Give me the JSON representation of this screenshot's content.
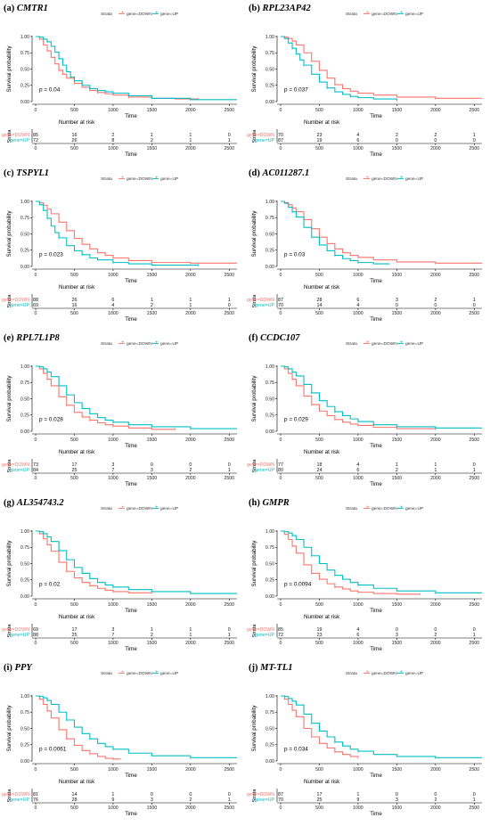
{
  "legend": {
    "title": "Strata",
    "entries": [
      "gene=DOWN",
      "gene=UP"
    ],
    "colors": {
      "DOWN": "#F8766D",
      "UP": "#00BFC4"
    }
  },
  "common": {
    "ylabel": "Survival probability",
    "xlabel": "Time",
    "risk_title": "Number at risk",
    "risk_ylabel": "Strata",
    "yticks": [
      "0.00",
      "0.25",
      "0.50",
      "0.75",
      "1.00"
    ],
    "xticks": [
      "0",
      "500",
      "1000",
      "1500",
      "2000",
      "2500"
    ],
    "xlim": [
      0,
      2600
    ],
    "ylim": [
      0,
      1
    ]
  },
  "chart_data": [
    {
      "type": "line",
      "label": "(a)",
      "gene": "CMTR1",
      "pvalue": "p = 0.04",
      "series": [
        {
          "name": "gene=DOWN",
          "x": [
            0,
            50,
            100,
            150,
            200,
            250,
            300,
            350,
            400,
            500,
            600,
            700,
            800,
            900,
            1000,
            1200,
            1500,
            1800,
            2100
          ],
          "y": [
            1.0,
            0.96,
            0.87,
            0.78,
            0.68,
            0.58,
            0.48,
            0.42,
            0.36,
            0.28,
            0.22,
            0.17,
            0.14,
            0.12,
            0.1,
            0.07,
            0.05,
            0.04,
            0.04
          ]
        },
        {
          "name": "gene=UP",
          "x": [
            0,
            50,
            100,
            150,
            200,
            250,
            300,
            350,
            400,
            450,
            500,
            600,
            700,
            800,
            900,
            1000,
            1200,
            1500,
            2000,
            2600
          ],
          "y": [
            1.0,
            0.99,
            0.96,
            0.92,
            0.85,
            0.76,
            0.66,
            0.56,
            0.46,
            0.38,
            0.32,
            0.25,
            0.2,
            0.17,
            0.15,
            0.13,
            0.09,
            0.05,
            0.03,
            0.03
          ]
        }
      ],
      "risk": {
        "DOWN": [
          "85",
          "16",
          "2",
          "1",
          "1",
          "0"
        ],
        "UP": [
          "72",
          "26",
          "8",
          "2",
          "1",
          "1"
        ]
      }
    },
    {
      "type": "line",
      "label": "(b)",
      "gene": "RPL23AP42",
      "pvalue": "p = 0.037",
      "series": [
        {
          "name": "gene=DOWN",
          "x": [
            0,
            50,
            100,
            150,
            200,
            300,
            400,
            500,
            600,
            700,
            800,
            900,
            1000,
            1200,
            1500,
            2000,
            2600
          ],
          "y": [
            1.0,
            0.99,
            0.97,
            0.93,
            0.87,
            0.75,
            0.62,
            0.48,
            0.36,
            0.26,
            0.2,
            0.16,
            0.13,
            0.1,
            0.07,
            0.05,
            0.05
          ]
        },
        {
          "name": "gene=UP",
          "x": [
            0,
            50,
            100,
            150,
            200,
            250,
            300,
            400,
            500,
            600,
            700,
            800,
            900,
            1000,
            1200,
            1500
          ],
          "y": [
            1.0,
            0.97,
            0.9,
            0.82,
            0.73,
            0.64,
            0.56,
            0.42,
            0.3,
            0.21,
            0.15,
            0.11,
            0.08,
            0.06,
            0.04,
            0.02
          ]
        }
      ],
      "risk": {
        "DOWN": [
          "70",
          "23",
          "4",
          "2",
          "2",
          "1"
        ],
        "UP": [
          "87",
          "19",
          "6",
          "0",
          "0",
          "0"
        ]
      }
    },
    {
      "type": "line",
      "label": "(c)",
      "gene": "TSPYL1",
      "pvalue": "p = 0.023",
      "series": [
        {
          "name": "gene=DOWN",
          "x": [
            0,
            50,
            100,
            150,
            200,
            300,
            400,
            500,
            600,
            700,
            800,
            900,
            1000,
            1200,
            1500,
            2000,
            2600
          ],
          "y": [
            1.0,
            0.98,
            0.94,
            0.88,
            0.81,
            0.68,
            0.55,
            0.43,
            0.34,
            0.27,
            0.21,
            0.17,
            0.13,
            0.09,
            0.06,
            0.05,
            0.05
          ]
        },
        {
          "name": "gene=UP",
          "x": [
            0,
            50,
            100,
            150,
            200,
            250,
            300,
            400,
            500,
            600,
            700,
            800,
            1000,
            1200,
            1500,
            2100
          ],
          "y": [
            1.0,
            0.95,
            0.86,
            0.74,
            0.62,
            0.52,
            0.44,
            0.32,
            0.24,
            0.18,
            0.13,
            0.1,
            0.06,
            0.04,
            0.02,
            0.02
          ]
        }
      ],
      "risk": {
        "DOWN": [
          "88",
          "26",
          "6",
          "1",
          "1",
          "1"
        ],
        "UP": [
          "69",
          "16",
          "4",
          "2",
          "1",
          "0"
        ]
      }
    },
    {
      "type": "line",
      "label": "(d)",
      "gene": "AC011287.1",
      "pvalue": "p = 0.03",
      "series": [
        {
          "name": "gene=DOWN",
          "x": [
            0,
            50,
            100,
            150,
            200,
            300,
            400,
            500,
            600,
            700,
            800,
            900,
            1000,
            1200,
            1500,
            2000,
            2600
          ],
          "y": [
            1.0,
            0.98,
            0.95,
            0.9,
            0.84,
            0.72,
            0.58,
            0.45,
            0.35,
            0.27,
            0.21,
            0.17,
            0.14,
            0.1,
            0.07,
            0.05,
            0.05
          ]
        },
        {
          "name": "gene=UP",
          "x": [
            0,
            50,
            100,
            150,
            200,
            300,
            400,
            500,
            600,
            700,
            800,
            900,
            1000,
            1200,
            1400
          ],
          "y": [
            1.0,
            0.97,
            0.91,
            0.84,
            0.76,
            0.6,
            0.45,
            0.33,
            0.24,
            0.17,
            0.12,
            0.09,
            0.06,
            0.04,
            0.03
          ]
        }
      ],
      "risk": {
        "DOWN": [
          "87",
          "28",
          "6",
          "3",
          "2",
          "1"
        ],
        "UP": [
          "70",
          "14",
          "4",
          "0",
          "0",
          "0"
        ]
      }
    },
    {
      "type": "line",
      "label": "(e)",
      "gene": "RPL7L1P8",
      "pvalue": "p = 0.028",
      "series": [
        {
          "name": "gene=DOWN",
          "x": [
            0,
            50,
            100,
            150,
            200,
            300,
            400,
            500,
            600,
            700,
            800,
            900,
            1000,
            1200,
            1500,
            1800
          ],
          "y": [
            1.0,
            0.96,
            0.89,
            0.8,
            0.7,
            0.53,
            0.4,
            0.29,
            0.22,
            0.17,
            0.13,
            0.1,
            0.08,
            0.05,
            0.03,
            0.03
          ]
        },
        {
          "name": "gene=UP",
          "x": [
            0,
            50,
            100,
            150,
            200,
            300,
            400,
            500,
            600,
            700,
            800,
            900,
            1000,
            1200,
            1500,
            2000,
            2600
          ],
          "y": [
            1.0,
            0.99,
            0.96,
            0.91,
            0.84,
            0.7,
            0.56,
            0.44,
            0.35,
            0.27,
            0.21,
            0.17,
            0.14,
            0.1,
            0.07,
            0.04,
            0.04
          ]
        }
      ],
      "risk": {
        "DOWN": [
          "73",
          "17",
          "3",
          "0",
          "0",
          "0"
        ],
        "UP": [
          "84",
          "25",
          "7",
          "3",
          "2",
          "1"
        ]
      }
    },
    {
      "type": "line",
      "label": "(f)",
      "gene": "CCDC107",
      "pvalue": "p = 0.029",
      "series": [
        {
          "name": "gene=DOWN",
          "x": [
            0,
            50,
            100,
            150,
            200,
            300,
            400,
            500,
            600,
            700,
            800,
            900,
            1000,
            1200,
            1500,
            2000
          ],
          "y": [
            1.0,
            0.96,
            0.89,
            0.8,
            0.7,
            0.54,
            0.41,
            0.31,
            0.24,
            0.18,
            0.14,
            0.11,
            0.09,
            0.06,
            0.04,
            0.03
          ]
        },
        {
          "name": "gene=UP",
          "x": [
            0,
            50,
            100,
            150,
            200,
            300,
            400,
            500,
            600,
            700,
            800,
            900,
            1000,
            1200,
            1500,
            2000,
            2600
          ],
          "y": [
            1.0,
            0.99,
            0.96,
            0.91,
            0.85,
            0.72,
            0.59,
            0.47,
            0.38,
            0.3,
            0.24,
            0.19,
            0.15,
            0.1,
            0.07,
            0.05,
            0.05
          ]
        }
      ],
      "risk": {
        "DOWN": [
          "77",
          "18",
          "4",
          "1",
          "1",
          "0"
        ],
        "UP": [
          "80",
          "24",
          "6",
          "2",
          "1",
          "1"
        ]
      }
    },
    {
      "type": "line",
      "label": "(g)",
      "gene": "AL354743.2",
      "pvalue": "p = 0.02",
      "series": [
        {
          "name": "gene=DOWN",
          "x": [
            0,
            50,
            100,
            150,
            200,
            300,
            400,
            500,
            600,
            700,
            800,
            900,
            1000,
            1200,
            1500
          ],
          "y": [
            1.0,
            0.96,
            0.88,
            0.79,
            0.69,
            0.52,
            0.38,
            0.28,
            0.21,
            0.16,
            0.12,
            0.09,
            0.07,
            0.05,
            0.04
          ]
        },
        {
          "name": "gene=UP",
          "x": [
            0,
            50,
            100,
            150,
            200,
            300,
            400,
            500,
            600,
            700,
            800,
            900,
            1000,
            1200,
            1500,
            2000,
            2600
          ],
          "y": [
            1.0,
            0.99,
            0.96,
            0.91,
            0.84,
            0.7,
            0.56,
            0.44,
            0.35,
            0.27,
            0.21,
            0.17,
            0.14,
            0.1,
            0.07,
            0.04,
            0.04
          ]
        }
      ],
      "risk": {
        "DOWN": [
          "69",
          "17",
          "3",
          "1",
          "1",
          "0"
        ],
        "UP": [
          "88",
          "25",
          "7",
          "2",
          "1",
          "1"
        ]
      }
    },
    {
      "type": "line",
      "label": "(h)",
      "gene": "GMPR",
      "pvalue": "p = 0.0094",
      "series": [
        {
          "name": "gene=DOWN",
          "x": [
            0,
            50,
            100,
            150,
            200,
            300,
            400,
            500,
            600,
            700,
            800,
            900,
            1000,
            1200,
            1500,
            1800
          ],
          "y": [
            1.0,
            0.95,
            0.87,
            0.77,
            0.66,
            0.48,
            0.35,
            0.26,
            0.19,
            0.14,
            0.11,
            0.08,
            0.06,
            0.04,
            0.03,
            0.03
          ]
        },
        {
          "name": "gene=UP",
          "x": [
            0,
            50,
            100,
            150,
            200,
            300,
            400,
            500,
            600,
            700,
            800,
            900,
            1000,
            1200,
            1500,
            2000,
            2600
          ],
          "y": [
            1.0,
            0.99,
            0.97,
            0.93,
            0.87,
            0.75,
            0.62,
            0.5,
            0.4,
            0.32,
            0.26,
            0.21,
            0.17,
            0.12,
            0.08,
            0.05,
            0.05
          ]
        }
      ],
      "risk": {
        "DOWN": [
          "85",
          "19",
          "4",
          "0",
          "0",
          "0"
        ],
        "UP": [
          "72",
          "23",
          "6",
          "3",
          "2",
          "1"
        ]
      }
    },
    {
      "type": "line",
      "label": "(i)",
      "gene": "PPY",
      "pvalue": "p = 0.0061",
      "series": [
        {
          "name": "gene=DOWN",
          "x": [
            0,
            50,
            100,
            150,
            200,
            300,
            400,
            500,
            600,
            700,
            800,
            900,
            1000,
            1100
          ],
          "y": [
            1.0,
            0.95,
            0.87,
            0.77,
            0.66,
            0.48,
            0.34,
            0.24,
            0.16,
            0.11,
            0.07,
            0.04,
            0.03,
            0.03
          ]
        },
        {
          "name": "gene=UP",
          "x": [
            0,
            50,
            100,
            150,
            200,
            300,
            400,
            500,
            600,
            700,
            800,
            900,
            1000,
            1200,
            1500,
            2000,
            2600
          ],
          "y": [
            1.0,
            0.99,
            0.97,
            0.93,
            0.87,
            0.75,
            0.63,
            0.52,
            0.42,
            0.34,
            0.27,
            0.22,
            0.18,
            0.12,
            0.08,
            0.05,
            0.05
          ]
        }
      ],
      "risk": {
        "DOWN": [
          "81",
          "14",
          "1",
          "0",
          "0",
          "0"
        ],
        "UP": [
          "76",
          "28",
          "9",
          "3",
          "2",
          "1"
        ]
      }
    },
    {
      "type": "line",
      "label": "(j)",
      "gene": "MT-TL1",
      "pvalue": "p = 0.034",
      "series": [
        {
          "name": "gene=DOWN",
          "x": [
            0,
            50,
            100,
            150,
            200,
            300,
            400,
            500,
            600,
            700,
            800,
            900,
            1000
          ],
          "y": [
            1.0,
            0.95,
            0.87,
            0.78,
            0.68,
            0.5,
            0.37,
            0.27,
            0.2,
            0.14,
            0.1,
            0.07,
            0.05
          ]
        },
        {
          "name": "gene=UP",
          "x": [
            0,
            50,
            100,
            150,
            200,
            300,
            400,
            500,
            600,
            700,
            800,
            900,
            1000,
            1200,
            1500,
            2000,
            2600
          ],
          "y": [
            1.0,
            0.99,
            0.96,
            0.92,
            0.86,
            0.72,
            0.58,
            0.46,
            0.37,
            0.29,
            0.23,
            0.18,
            0.15,
            0.1,
            0.07,
            0.05,
            0.05
          ]
        }
      ],
      "risk": {
        "DOWN": [
          "87",
          "17",
          "1",
          "0",
          "0",
          "0"
        ],
        "UP": [
          "70",
          "25",
          "9",
          "3",
          "2",
          "1"
        ]
      }
    }
  ]
}
